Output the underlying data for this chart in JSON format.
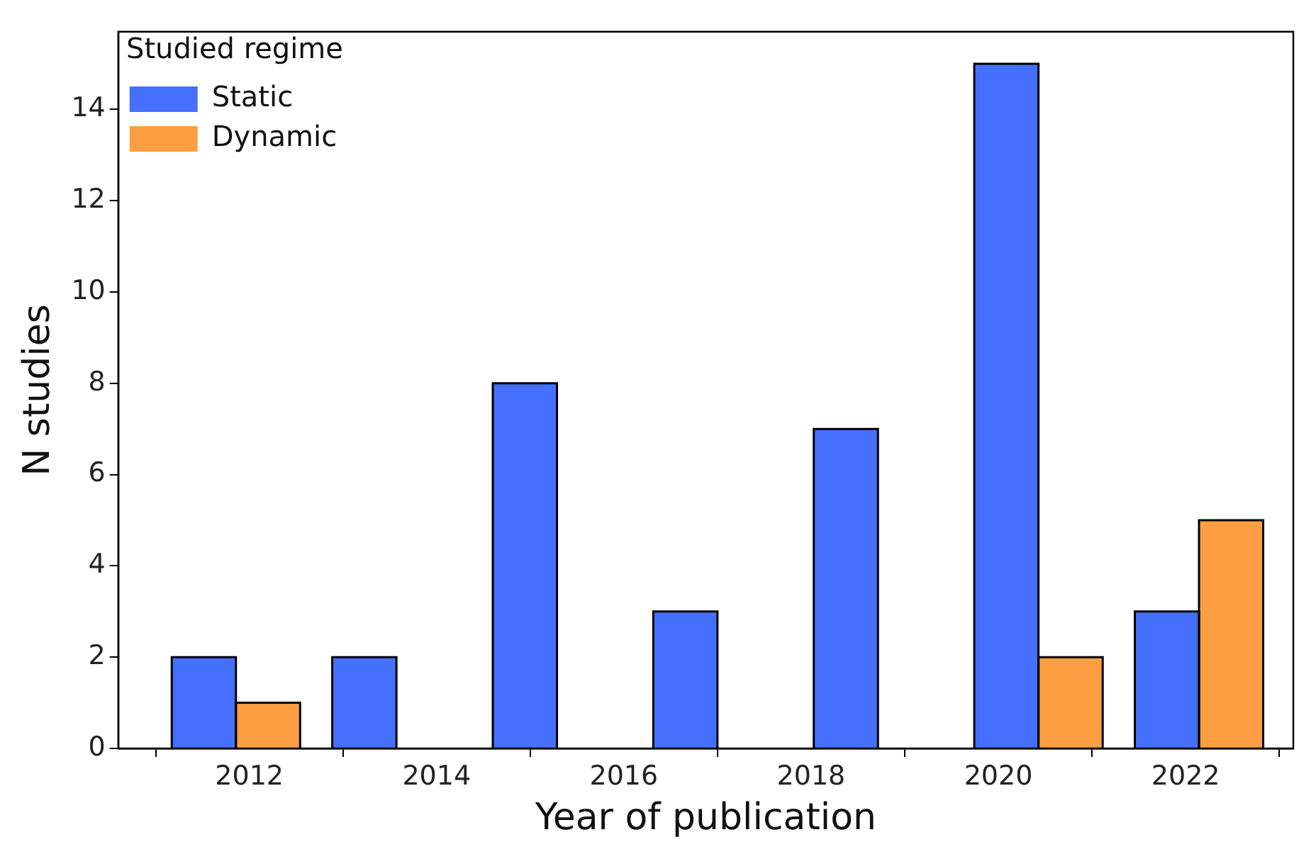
{
  "chart_data": {
    "type": "histogram",
    "xlabel": "Year of publication",
    "ylabel": "N studies",
    "legend_title": "Studied regime",
    "bins": [
      2011,
      2012.714,
      2014.429,
      2016.143,
      2017.857,
      2019.571,
      2021.286,
      2023
    ],
    "series": [
      {
        "name": "Static",
        "color": "#4470fd",
        "values": [
          2,
          2,
          8,
          3,
          7,
          15,
          3
        ]
      },
      {
        "name": "Dynamic",
        "color": "#fe9e42",
        "values": [
          1,
          0,
          0,
          0,
          0,
          2,
          5
        ]
      }
    ],
    "xlim": [
      2010.6,
      2023.15
    ],
    "xticks": [
      2012,
      2014,
      2016,
      2018,
      2020,
      2022
    ],
    "ylim": [
      0,
      15.7
    ],
    "yticks": [
      0,
      2,
      4,
      6,
      8,
      10,
      12,
      14
    ],
    "grid": false,
    "legend": "top left"
  }
}
